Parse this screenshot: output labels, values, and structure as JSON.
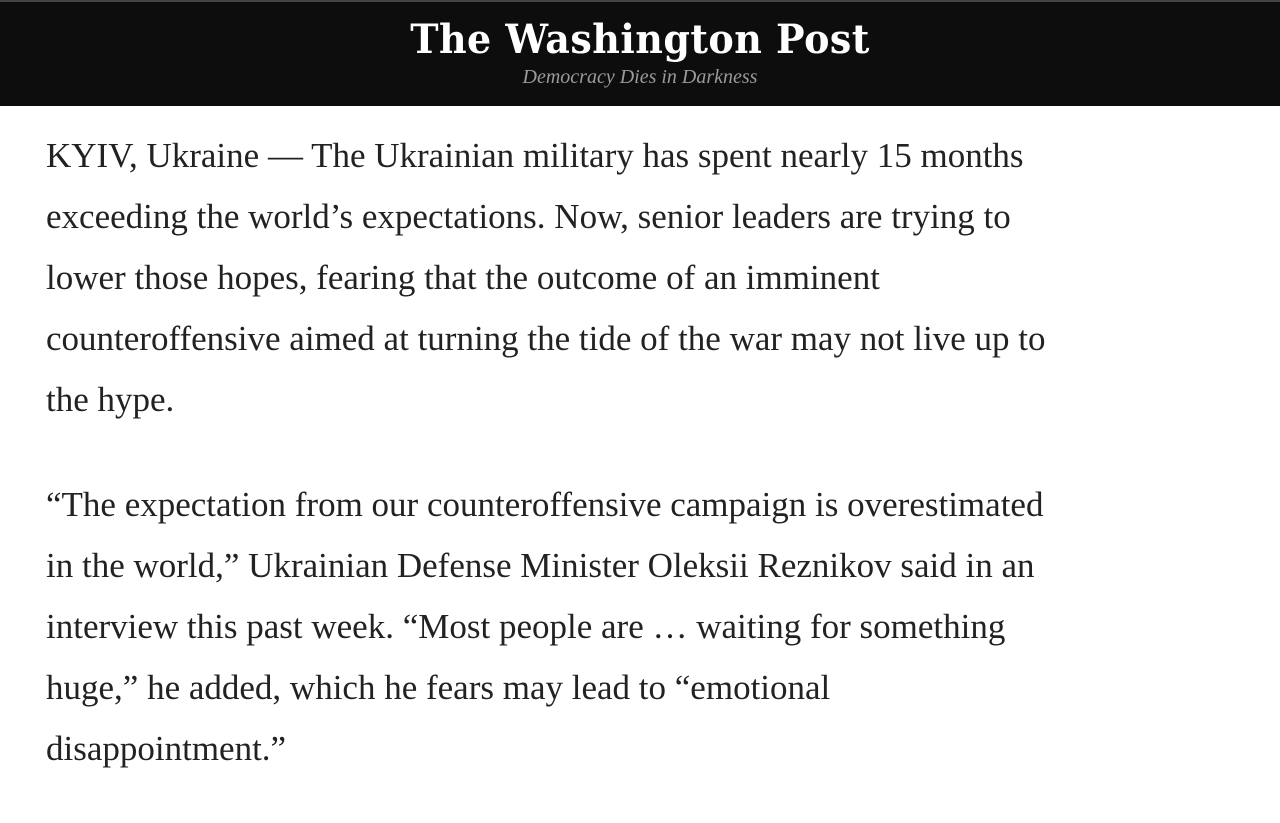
{
  "masthead": {
    "logo": "The Washington Post",
    "tagline": "Democracy Dies in Darkness"
  },
  "article": {
    "paragraphs": [
      {
        "lines": [
          "KYIV, Ukraine — The Ukrainian military has spent nearly 15 months",
          "exceeding the world’s expectations. Now, senior leaders are trying to",
          "lower those hopes, fearing that the outcome of an imminent",
          "counteroffensive aimed at turning the tide of the war may not live up to",
          "the hype."
        ]
      },
      {
        "lines": [
          "“The expectation from our counteroffensive campaign is overestimated",
          "in the world,” Ukrainian Defense Minister Oleksii Reznikov said in an",
          "interview this past week. “Most people are … waiting for something",
          "huge,” he added, which he fears may lead to “emotional",
          "disappointment.”"
        ]
      }
    ]
  }
}
